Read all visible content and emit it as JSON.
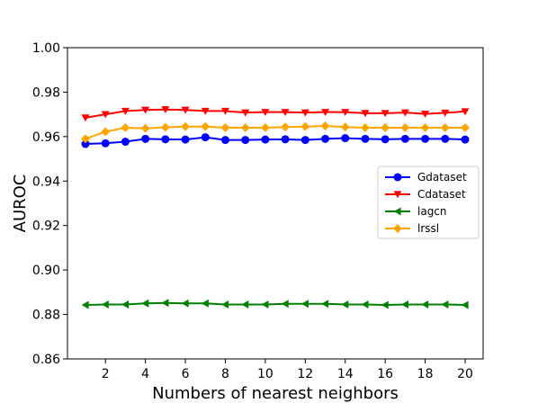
{
  "chart_data": {
    "type": "line",
    "xlabel": "Numbers of nearest neighbors",
    "ylabel": "AUROC",
    "xlim": [
      0.1,
      20.9
    ],
    "ylim": [
      0.86,
      1.0
    ],
    "x": [
      1,
      2,
      3,
      4,
      5,
      6,
      7,
      8,
      9,
      10,
      11,
      12,
      13,
      14,
      15,
      16,
      17,
      18,
      19,
      20
    ],
    "xticks": [
      2,
      4,
      6,
      8,
      10,
      12,
      14,
      16,
      18,
      20
    ],
    "xtick_labels": [
      "2",
      "4",
      "6",
      "8",
      "10",
      "12",
      "14",
      "16",
      "18",
      "20"
    ],
    "yticks": [
      0.86,
      0.88,
      0.9,
      0.92,
      0.94,
      0.96,
      0.98,
      1.0
    ],
    "ytick_labels": [
      "0.86",
      "0.88",
      "0.90",
      "0.92",
      "0.94",
      "0.96",
      "0.98",
      "1.00"
    ],
    "grid": false,
    "legend_position": "center-right",
    "series": [
      {
        "name": "Gdataset",
        "color": "#0000ff",
        "marker": "circle",
        "values": [
          0.9567,
          0.957,
          0.9577,
          0.959,
          0.9588,
          0.9587,
          0.9597,
          0.9585,
          0.9585,
          0.9587,
          0.9588,
          0.9585,
          0.959,
          0.9593,
          0.959,
          0.9588,
          0.959,
          0.959,
          0.959,
          0.9587
        ]
      },
      {
        "name": "Cdataset",
        "color": "#ff0000",
        "marker": "triangle-down",
        "values": [
          0.9685,
          0.97,
          0.9715,
          0.972,
          0.9722,
          0.972,
          0.9715,
          0.9715,
          0.9708,
          0.971,
          0.971,
          0.9708,
          0.971,
          0.971,
          0.9705,
          0.9705,
          0.9708,
          0.9702,
          0.9707,
          0.9713
        ]
      },
      {
        "name": "lagcn",
        "color": "#008000",
        "marker": "triangle-left",
        "values": [
          0.8843,
          0.8845,
          0.8845,
          0.885,
          0.8852,
          0.885,
          0.885,
          0.8845,
          0.8845,
          0.8845,
          0.8848,
          0.8848,
          0.8848,
          0.8845,
          0.8845,
          0.8843,
          0.8845,
          0.8845,
          0.8845,
          0.8843
        ]
      },
      {
        "name": "lrssl",
        "color": "#ffa500",
        "marker": "diamond",
        "values": [
          0.959,
          0.9622,
          0.964,
          0.9637,
          0.9642,
          0.9645,
          0.9645,
          0.964,
          0.964,
          0.964,
          0.9643,
          0.9645,
          0.9648,
          0.9643,
          0.964,
          0.964,
          0.964,
          0.964,
          0.964,
          0.964
        ]
      }
    ]
  }
}
